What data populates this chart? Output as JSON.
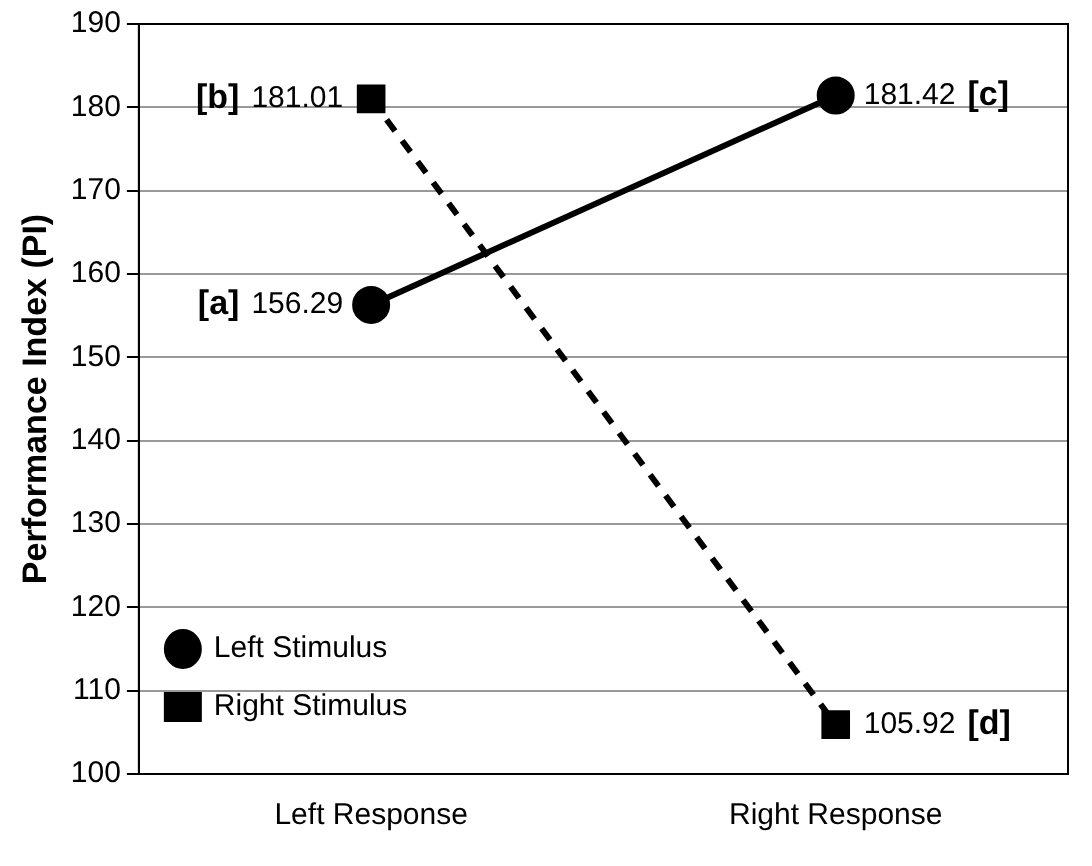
{
  "chart_data": {
    "type": "line",
    "ylabel": "Performance Index (PI)",
    "categories": [
      "Left Response",
      "Right Response"
    ],
    "series": [
      {
        "name": "Left Stimulus",
        "color": "#000000",
        "values": [
          156.29,
          181.42
        ],
        "marker": "circle",
        "line_style": "solid"
      },
      {
        "name": "Right Stimulus",
        "color": "#000000",
        "values": [
          181.01,
          105.92
        ],
        "marker": "square",
        "line_style": "dashed"
      }
    ],
    "ylim": [
      100,
      190
    ],
    "yticks": [
      100,
      110,
      120,
      130,
      140,
      150,
      160,
      170,
      180,
      190
    ],
    "grid": "y",
    "legend": "bottom left",
    "data_labels": true,
    "annotations": [
      "[a]",
      "[b]",
      "[c]",
      "[d]"
    ]
  }
}
